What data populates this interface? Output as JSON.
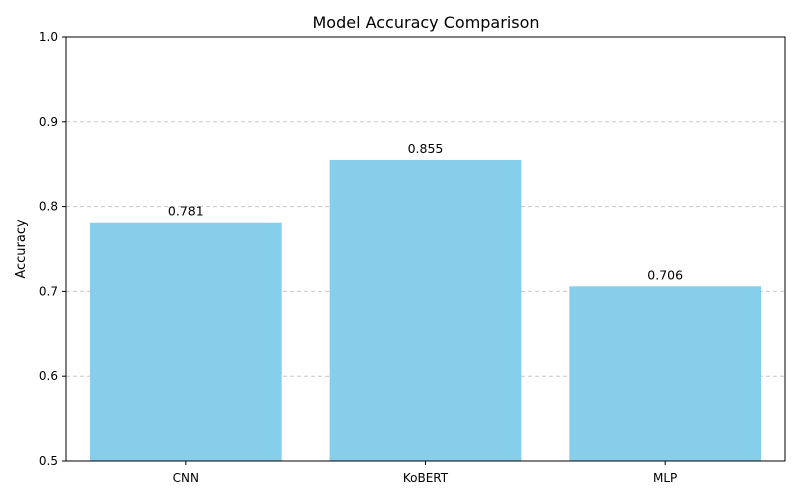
{
  "chart_data": {
    "type": "bar",
    "title": "Model Accuracy Comparison",
    "xlabel": "",
    "ylabel": "Accuracy",
    "categories": [
      "CNN",
      "KoBERT",
      "MLP"
    ],
    "values": [
      0.781,
      0.855,
      0.706
    ],
    "value_labels": [
      "0.781",
      "0.855",
      "0.706"
    ],
    "ylim": [
      0.5,
      1.0
    ],
    "yticks": [
      0.5,
      0.6,
      0.7,
      0.8,
      0.9,
      1.0
    ],
    "ytick_labels": [
      "0.5",
      "0.6",
      "0.7",
      "0.8",
      "0.9",
      "1.0"
    ],
    "grid": "y-dashed",
    "bar_color": "#87CEEB"
  }
}
